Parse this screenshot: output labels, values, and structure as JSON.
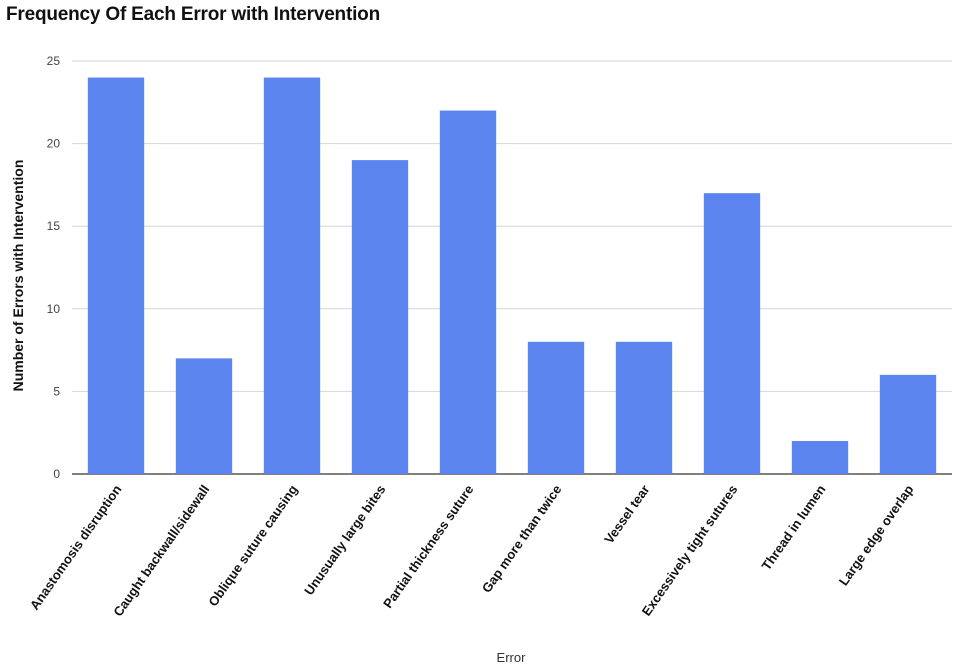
{
  "chart_data": {
    "type": "bar",
    "title": "Frequency Of Each Error with Intervention",
    "xlabel": "Error",
    "ylabel": "Number of Errors with Intervention",
    "categories": [
      "Anastomosis disruption",
      "Caught backwall/sidewall",
      "Oblique suture causing",
      "Unusually large bites",
      "Partial thickness suture",
      "Gap more than twice",
      "Vessel tear",
      "Excessively tight sutures",
      "Thread in lumen",
      "Large edge overlap"
    ],
    "values": [
      24,
      7,
      24,
      19,
      22,
      8,
      8,
      17,
      2,
      6
    ],
    "ylim": [
      0,
      25
    ],
    "yticks": [
      0,
      5,
      10,
      15,
      20,
      25
    ],
    "grid": true,
    "bar_color": "#5b84ee"
  }
}
